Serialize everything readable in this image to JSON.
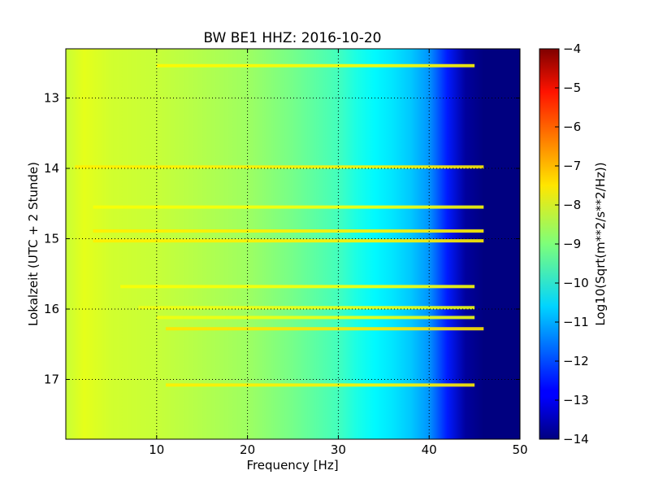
{
  "chart_data": {
    "type": "heatmap",
    "title": "BW BE1 HHZ: 2016-10-20",
    "xlabel": "Frequency [Hz]",
    "ylabel": "Lokalzeit (UTC + 2 Stunde)",
    "xlim": [
      0,
      50
    ],
    "ylim": [
      12.3,
      17.85
    ],
    "y_inverted": true,
    "x_ticks": [
      10,
      20,
      30,
      40,
      50
    ],
    "x_tick_labels": [
      "10",
      "20",
      "30",
      "40",
      "50"
    ],
    "y_ticks": [
      13,
      14,
      15,
      16,
      17
    ],
    "y_tick_labels": [
      "13",
      "14",
      "15",
      "16",
      "17"
    ],
    "grid": true,
    "colormap": "jet",
    "colorbar": {
      "label": "Log10(Sqrt(m**2/s**2/Hz))",
      "min": -14,
      "max": -4,
      "ticks": [
        -4,
        -5,
        -6,
        -7,
        -8,
        -9,
        -10,
        -11,
        -12,
        -13,
        -14
      ],
      "tick_labels": [
        "−4",
        "−5",
        "−6",
        "−7",
        "−8",
        "−9",
        "−10",
        "−11",
        "−12",
        "−13",
        "−14"
      ]
    },
    "spectrum_profile": {
      "frequency_hz": [
        0,
        2,
        5,
        10,
        15,
        20,
        25,
        30,
        32,
        34,
        36,
        38,
        40,
        42,
        44,
        46,
        48,
        50
      ],
      "value": [
        -8.3,
        -8.0,
        -8.2,
        -8.3,
        -8.5,
        -8.7,
        -9.1,
        -9.6,
        -10.0,
        -10.3,
        -10.5,
        -10.8,
        -11.3,
        -12.5,
        -13.7,
        -14.0,
        -14.0,
        -14.0
      ]
    },
    "anomaly_lines": [
      {
        "time": 12.54,
        "from_hz": 10,
        "to_hz": 45,
        "value": -7.7
      },
      {
        "time": 13.98,
        "from_hz": 1,
        "to_hz": 46,
        "value": -7.6
      },
      {
        "time": 14.55,
        "from_hz": 3,
        "to_hz": 46,
        "value": -7.8
      },
      {
        "time": 14.89,
        "from_hz": 3,
        "to_hz": 46,
        "value": -7.6
      },
      {
        "time": 15.03,
        "from_hz": 3,
        "to_hz": 46,
        "value": -7.6
      },
      {
        "time": 15.68,
        "from_hz": 6,
        "to_hz": 45,
        "value": -7.8
      },
      {
        "time": 15.98,
        "from_hz": 8,
        "to_hz": 45,
        "value": -7.9
      },
      {
        "time": 16.12,
        "from_hz": 10,
        "to_hz": 45,
        "value": -7.9
      },
      {
        "time": 16.28,
        "from_hz": 11,
        "to_hz": 46,
        "value": -7.5
      },
      {
        "time": 17.08,
        "from_hz": 11,
        "to_hz": 45,
        "value": -7.6
      }
    ]
  }
}
